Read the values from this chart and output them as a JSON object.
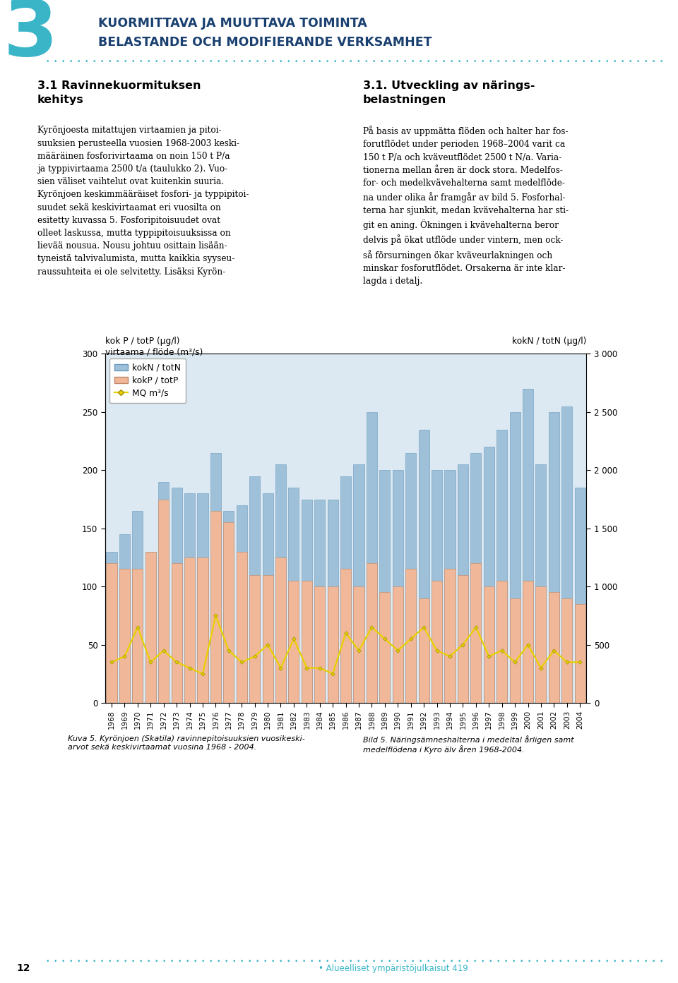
{
  "years": [
    1968,
    1969,
    1970,
    1971,
    1972,
    1973,
    1974,
    1975,
    1976,
    1977,
    1978,
    1979,
    1980,
    1981,
    1982,
    1983,
    1984,
    1985,
    1986,
    1987,
    1988,
    1989,
    1990,
    1991,
    1992,
    1993,
    1994,
    1995,
    1996,
    1997,
    1998,
    1999,
    2000,
    2001,
    2002,
    2003,
    2004
  ],
  "kokN_left": [
    130,
    145,
    165,
    130,
    190,
    185,
    180,
    180,
    215,
    165,
    170,
    195,
    180,
    205,
    185,
    175,
    175,
    175,
    195,
    205,
    250,
    200,
    200,
    215,
    235,
    200,
    200,
    205,
    215,
    220,
    235,
    250,
    270,
    205,
    250,
    255,
    185
  ],
  "kokP": [
    120,
    115,
    115,
    130,
    175,
    120,
    125,
    125,
    165,
    155,
    130,
    110,
    110,
    125,
    105,
    105,
    100,
    100,
    115,
    100,
    120,
    95,
    100,
    115,
    90,
    105,
    115,
    110,
    120,
    100,
    105,
    90,
    105,
    100,
    95,
    90,
    85
  ],
  "MQ": [
    35,
    40,
    65,
    35,
    45,
    35,
    30,
    25,
    75,
    45,
    35,
    40,
    50,
    30,
    55,
    30,
    30,
    25,
    60,
    45,
    65,
    55,
    45,
    55,
    65,
    45,
    40,
    50,
    65,
    40,
    45,
    35,
    50,
    30,
    45,
    35,
    35
  ],
  "kokN_color": "#9ec0d8",
  "kokP_color": "#f0b898",
  "MQ_color": "#e8d000",
  "background_color": "#dce9f2",
  "chart_bg_outer": "#dce9f2",
  "ylim_left": [
    0,
    300
  ],
  "yticks_left": [
    0,
    50,
    100,
    150,
    200,
    250,
    300
  ],
  "yticks_right_labels": [
    "0",
    "500",
    "1 000",
    "1 500",
    "2 000",
    "2 500",
    "3 000"
  ],
  "legend_kokN": "kokN / totN",
  "legend_kokP": "kokP / totP",
  "legend_MQ": "MQ m³/s",
  "left_label1": "kok P / totP (µg/l)",
  "left_label2": "virtaama / flöde (m³/s)",
  "right_label": "kokN / totN (µg/l)",
  "caption_left": "Kuva 5. Kyrönjoen (Skatila) ravinnepitoisuuksien vuosikeski-\narvot sekä keskivirtaamat vuosina 1968 - 2004.",
  "caption_right": "Bild 5. Näringsämneshalterna i medeltal årligen samt\nmedelflödena i Kyro älv åren 1968-2004.",
  "header_color": "#3ab5c8",
  "header_text_color": "#1a4070",
  "header_line1": "KUORMITTAVA JA MUUTTAVA TOIMINTA",
  "header_line2": "BELASTANDE OCH MODIFIERANDE VERKSAMHET",
  "heading_fi": "3.1 Ravinnekuormituksen\nkehitys",
  "heading_sv": "3.1. Utveckling av närings-\nbelastningen",
  "body_fi": "Kyrönjoesta mitattujen virtaamien ja pitoi-\nsuuksien perusteella vuosien 1968-2003 keski-\nmääräinen fosforivirtaama on noin 150 t P/a\nja typpivirtaama 2500 t/a (taulukko 2). Vuo-\nsien väliset vaihtelut ovat kuitenkin suuria.\nKyrönjoen keskimmääräiset fosfori- ja typpipitoi-\nsuudet sekä keskivirtaamat eri vuosilta on\nesitetty kuvassa 5. Fosforipitoisuudet ovat\nolleet laskussa, mutta typpipitoisuuksissa on\nlievää nousua. Nousu johtuu osittain lisään-\ntyneistä talvivalumista, mutta kaikkia syyseu-\nraussuhteita ei ole selvitetty. Lisäksi Kyrön-",
  "body_sv": "På basis av uppmätta flöden och halter har fos-\nforutflödet under perioden 1968–2004 varit ca\n150 t P/a och kväveutflödet 2500 t N/a. Varia-\ntionerna mellan åren är dock stora. Medelfos-\nfor- och medelkvävehalterna samt medelflöde-\nna under olika år framgår av bild 5. Fosforhal-\nterna har sjunkit, medan kvävehalterna har sti-\ngit en aning. Ökningen i kvävehalterna beror\ndelvis på ökat utflöde under vintern, men ock-\nså försurningen ökar kväveurlakningen och\nminskar fosforutflödet. Orsakerna är inte klar-\nlagda i detalj.",
  "page_num": "12",
  "publisher": "• Alueelliset ympäristöjulkaisut 419"
}
